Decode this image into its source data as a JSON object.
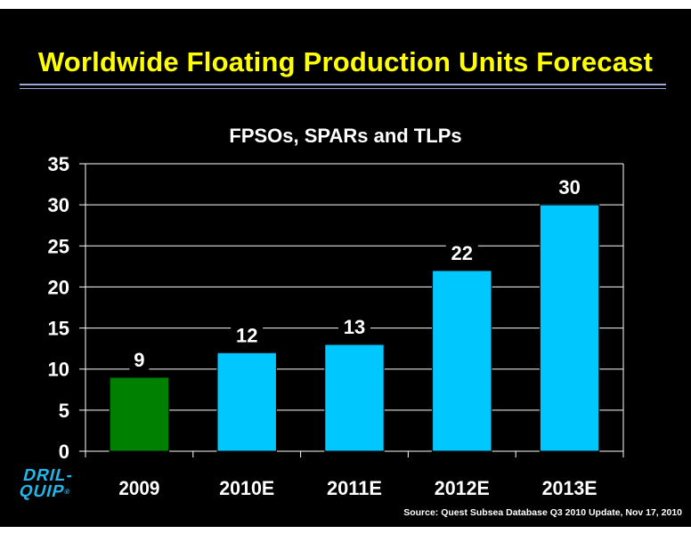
{
  "slide": {
    "title": "Worldwide Floating Production Units Forecast",
    "source": "Source:  Quest Subsea Database Q3 2010 Update, Nov 17, 2010",
    "logo": {
      "line1": "DRIL-",
      "line2": "QUIP",
      "mark": "®"
    }
  },
  "colors": {
    "background": "#000000",
    "title": "#ffff00",
    "actual_bar": "#008000",
    "forecast_bar": "#00c8ff",
    "text": "#ffffff"
  },
  "chart_data": {
    "type": "bar",
    "title": "FPSOs, SPARs and TLPs",
    "xlabel": "",
    "ylabel": "",
    "categories": [
      "2009",
      "2010E",
      "2011E",
      "2012E",
      "2013E"
    ],
    "values": [
      9,
      12,
      13,
      22,
      30
    ],
    "value_labels": [
      "9",
      "12",
      "13",
      "22",
      "30"
    ],
    "bar_colors": [
      "#008000",
      "#00c8ff",
      "#00c8ff",
      "#00c8ff",
      "#00c8ff"
    ],
    "ylim": [
      0,
      35
    ],
    "yticks": [
      "0",
      "5",
      "10",
      "15",
      "20",
      "25",
      "30",
      "35"
    ],
    "grid": true,
    "legend": "none"
  }
}
